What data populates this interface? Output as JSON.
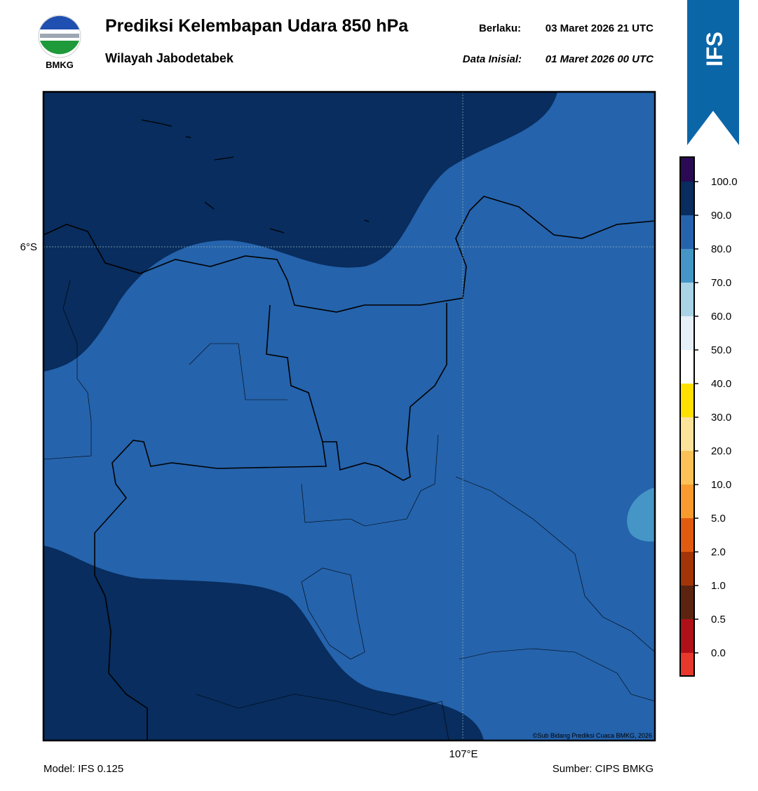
{
  "header": {
    "logo_text": "BMKG",
    "title": "Prediksi Kelembapan Udara 850 hPa",
    "subtitle": "Wilayah Jabodetabek",
    "valid_label": "Berlaku:",
    "valid": "03 Maret 2026 21 UTC",
    "init_label": "Data Inisial:",
    "init": "01 Maret 2026 00 UTC",
    "badge": "IFS"
  },
  "map": {
    "lat_label": "6°S",
    "lon_label": "107°E",
    "copyright": "©Sub Bidang Prediksi Cuaca BMKG, 2026"
  },
  "colorbar": {
    "ticks": [
      "100.0",
      "90.0",
      "80.0",
      "70.0",
      "60.0",
      "50.0",
      "40.0",
      "30.0",
      "20.0",
      "10.0",
      "5.0",
      "2.0",
      "1.0",
      "0.5",
      "0.0"
    ]
  },
  "footer": {
    "model": "Model: IFS 0.125",
    "source": "Sumber: CIPS BMKG"
  }
}
